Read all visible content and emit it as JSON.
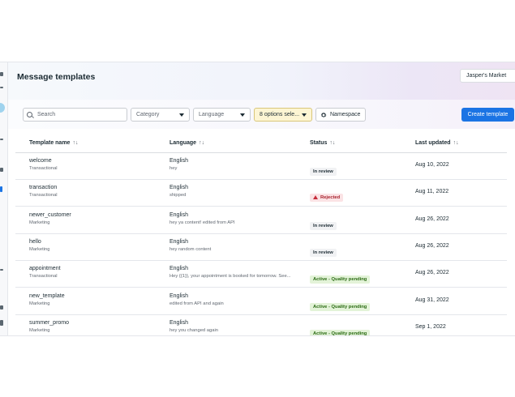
{
  "header": {
    "title": "Message templates",
    "account": "Jasper's Market"
  },
  "toolbar": {
    "search_placeholder": "Search",
    "category_label": "Category",
    "language_label": "Language",
    "options_label": "8 options sele...",
    "namespace_label": "Namespace",
    "create_label": "Create template"
  },
  "table": {
    "columns": [
      {
        "label": "Template name",
        "sort": "↑↓"
      },
      {
        "label": "Language",
        "sort": "↑↓"
      },
      {
        "label": "Status",
        "sort": "↑↓"
      },
      {
        "label": "Last updated",
        "sort": "↑↓"
      }
    ],
    "rows": [
      {
        "name": "welcome",
        "category": "Transactional",
        "language": "English",
        "preview": "hey",
        "status": "In review",
        "updated": "Aug 10, 2022"
      },
      {
        "name": "transaction",
        "category": "Transactional",
        "language": "English",
        "preview": "shipped",
        "status": "Rejected",
        "updated": "Aug 11, 2022"
      },
      {
        "name": "newer_customer",
        "category": "Marketing",
        "language": "English",
        "preview": "hey ya content! edited from API",
        "status": "In review",
        "updated": "Aug 26, 2022"
      },
      {
        "name": "hello",
        "category": "Marketing",
        "language": "English",
        "preview": "hey random content",
        "status": "In review",
        "updated": "Aug 26, 2022"
      },
      {
        "name": "appointment",
        "category": "Transactional",
        "language": "English",
        "preview": "Hey {{1}}, your appointment is booked for tomorrow. See...",
        "status": "Active - Quality pending",
        "updated": "Aug 26, 2022"
      },
      {
        "name": "new_template",
        "category": "Marketing",
        "language": "English",
        "preview": "edited from API and again",
        "status": "Active - Quality pending",
        "updated": "Aug 31, 2022"
      },
      {
        "name": "summer_promo",
        "category": "Marketing",
        "language": "English",
        "preview": "hey you changed again",
        "status": "Active - Quality pending",
        "updated": "Sep 1, 2022"
      }
    ]
  },
  "colors": {
    "primary": "#1b74e4",
    "rejected": "#c62c3b",
    "active": "#2b6b14",
    "options_highlight": "#fdf5d3"
  }
}
